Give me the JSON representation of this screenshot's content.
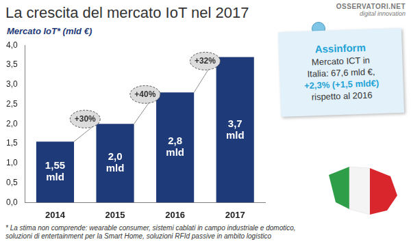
{
  "chart_data": {
    "type": "bar",
    "title": "La crescita del mercato IoT nel 2017",
    "y_label": "Mercato IoT* (mld €)",
    "categories": [
      "2014",
      "2015",
      "2016",
      "2017"
    ],
    "values": [
      1.55,
      2.0,
      2.8,
      3.7
    ],
    "value_labels": [
      "1,55 mld",
      "2,0 mld",
      "2,8 mld",
      "3,7 mld"
    ],
    "color": "#1f3a78",
    "ylim": [
      0,
      4
    ],
    "yticks": [
      {
        "value": 0,
        "label": "0,0"
      },
      {
        "value": 0.5,
        "label": "0,5"
      },
      {
        "value": 1,
        "label": "1,0"
      },
      {
        "value": 1.5,
        "label": "1,5"
      },
      {
        "value": 2,
        "label": "2,0"
      },
      {
        "value": 2.5,
        "label": "2,5"
      },
      {
        "value": 3,
        "label": "3,0"
      },
      {
        "value": 3.5,
        "label": "3,5"
      },
      {
        "value": 4,
        "label": "4,0"
      }
    ],
    "grid": false,
    "data_labels": true,
    "annotations": [
      "+30%",
      "+40%",
      "+32%"
    ]
  },
  "note": {
    "title": "Assinform",
    "lines": [
      "Mercato ICT in",
      "Italia: 67,6 mld €,",
      "+2,3% (+1,5 mld€)",
      "rispetto al 2016"
    ]
  },
  "logo": [
    "OSSERVATORI.NET",
    "digital innovation"
  ],
  "footnote": [
    "* La stima non comprende: wearable consumer, sistemi cablati in campo industriale e domotico,",
    "soluzioni di entertainment per la Smart Home, soluzioni RFId passive in ambito logistico"
  ]
}
